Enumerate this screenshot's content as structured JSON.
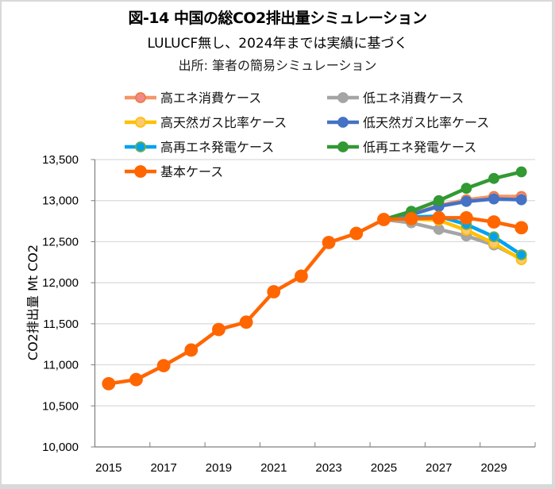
{
  "chart_data": {
    "type": "line",
    "title": "図-14  中国の総CO2排出量シミュレーション",
    "subtitle": "LULUCF無し、2024年までは実績に基づく",
    "source": "出所: 筆者の簡易シミュレーション",
    "xlabel": "",
    "ylabel": "CO2排出量  Mt CO2",
    "x": [
      2015,
      2016,
      2017,
      2018,
      2019,
      2020,
      2021,
      2022,
      2023,
      2024,
      2025,
      2026,
      2027,
      2028,
      2029,
      2030
    ],
    "x_tick_labels": [
      "2015",
      "2017",
      "2019",
      "2021",
      "2023",
      "2025",
      "2027",
      "2029"
    ],
    "ylim": [
      10000,
      13500
    ],
    "y_ticks": [
      10000,
      10500,
      11000,
      11500,
      12000,
      12500,
      13000,
      13500
    ],
    "y_tick_labels": [
      "10,000",
      "10,500",
      "11,000",
      "11,500",
      "12,000",
      "12,500",
      "13,000",
      "13,500"
    ],
    "grid": "horizontal",
    "legend_position": "top-left",
    "series": [
      {
        "name": "高エネ消費ケース",
        "color": "#F4956A",
        "marker_fill": "#F08A8A",
        "marker_stroke": "#F07B3F",
        "values": [
          null,
          null,
          null,
          null,
          null,
          null,
          null,
          null,
          null,
          null,
          12770,
          12830,
          12940,
          13010,
          13050,
          13050
        ]
      },
      {
        "name": "低エネ消費ケース",
        "color": "#A5A5A5",
        "marker_fill": "#A5A5A5",
        "marker_stroke": "#A5A5A5",
        "values": [
          null,
          null,
          null,
          null,
          null,
          null,
          null,
          null,
          null,
          null,
          12770,
          12730,
          12650,
          12570,
          12460,
          12290
        ]
      },
      {
        "name": "高天然ガス比率ケース",
        "color": "#FFC000",
        "marker_fill": "#FFC870",
        "marker_stroke": "#FFC000",
        "values": [
          null,
          null,
          null,
          null,
          null,
          null,
          null,
          null,
          null,
          null,
          12770,
          12780,
          12760,
          12640,
          12480,
          12280
        ]
      },
      {
        "name": "低天然ガス比率ケース",
        "color": "#4472C4",
        "marker_fill": "#4472C4",
        "marker_stroke": "#4472C4",
        "values": [
          null,
          null,
          null,
          null,
          null,
          null,
          null,
          null,
          null,
          null,
          12770,
          12830,
          12930,
          12990,
          13020,
          13010
        ]
      },
      {
        "name": "高再エネ発電ケース",
        "color": "#00A2F0",
        "marker_fill": "#00A2F0",
        "marker_stroke": "#70AD47",
        "values": [
          null,
          null,
          null,
          null,
          null,
          null,
          null,
          null,
          null,
          null,
          12770,
          12800,
          12810,
          12710,
          12560,
          12340
        ]
      },
      {
        "name": "低再エネ発電ケース",
        "color": "#339933",
        "marker_fill": "#339933",
        "marker_stroke": "#339933",
        "values": [
          null,
          null,
          null,
          null,
          null,
          null,
          null,
          null,
          null,
          null,
          12770,
          12870,
          13000,
          13150,
          13270,
          13350
        ]
      },
      {
        "name": "基本ケース",
        "color": "#FF6600",
        "marker_fill": "#FF6600",
        "marker_stroke": "#FF6600",
        "values": [
          10770,
          10820,
          10990,
          11180,
          11430,
          11520,
          11890,
          12080,
          12490,
          12600,
          12770,
          12780,
          12790,
          12790,
          12740,
          12670
        ]
      }
    ]
  }
}
